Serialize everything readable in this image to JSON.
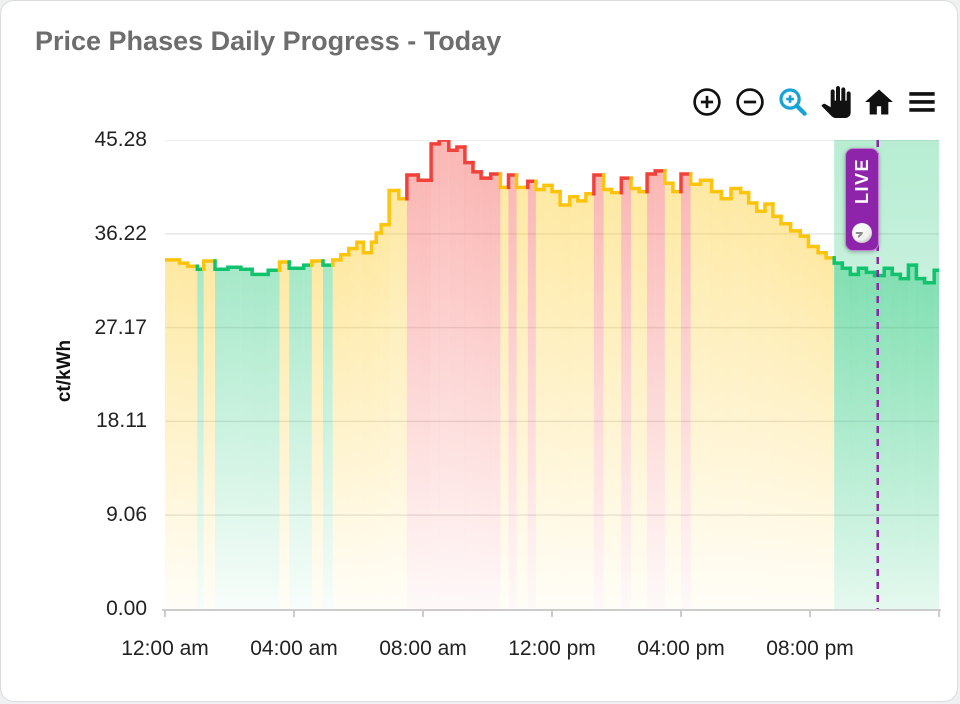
{
  "title": "Price Phases Daily Progress - Today",
  "toolbar": {
    "buttons": [
      {
        "name": "zoom-in",
        "icon": "circle-plus-icon",
        "color": "#111111"
      },
      {
        "name": "zoom-out",
        "icon": "circle-minus-icon",
        "color": "#111111"
      },
      {
        "name": "zoom-select",
        "icon": "magnifier-plus-icon",
        "color": "#17a2d8",
        "active": true
      },
      {
        "name": "pan",
        "icon": "hand-icon",
        "color": "#111111"
      },
      {
        "name": "reset-home",
        "icon": "home-icon",
        "color": "#111111"
      },
      {
        "name": "menu",
        "icon": "hamburger-icon",
        "color": "#111111"
      }
    ]
  },
  "live_badge": {
    "label": "LIVE",
    "color": "#8e24aa",
    "icon": "clock-icon"
  },
  "axes": {
    "y_title": "ct/kWh",
    "y_ticks": [
      {
        "label": "45.28",
        "value": 45.28
      },
      {
        "label": "36.22",
        "value": 36.22
      },
      {
        "label": "27.17",
        "value": 27.17
      },
      {
        "label": "18.11",
        "value": 18.11
      },
      {
        "label": "9.06",
        "value": 9.06
      },
      {
        "label": "0.00",
        "value": 0.0
      }
    ],
    "x_ticks": [
      {
        "label": "12:00 am",
        "hour": 0
      },
      {
        "label": "04:00 am",
        "hour": 4
      },
      {
        "label": "08:00 am",
        "hour": 8
      },
      {
        "label": "12:00 pm",
        "hour": 12
      },
      {
        "label": "04:00 pm",
        "hour": 16
      },
      {
        "label": "08:00 pm",
        "hour": 20
      }
    ]
  },
  "colors": {
    "green": "#12c36e",
    "yellow": "#fdc40d",
    "red": "#f2413a",
    "purple": "#8e24aa",
    "grid": "#e7e7e7",
    "axis": "#cccccc",
    "title_gray": "#6d6d6d"
  },
  "chart_data": {
    "type": "step-area",
    "title": "Price Phases Daily Progress - Today",
    "ylabel": "ct/kWh",
    "ylim": [
      0,
      45.28
    ],
    "x_range_hours": [
      0,
      24
    ],
    "grid": "horizontal",
    "legend": "none",
    "points_format": [
      "hour",
      "price_ct_per_kWh",
      "phase(g=green,y=yellow,r=red)"
    ],
    "points": [
      [
        0,
        33.7,
        "y"
      ],
      [
        0.45,
        33.4,
        "y"
      ],
      [
        0.7,
        33.1,
        "y"
      ],
      [
        1,
        32.8,
        "g"
      ],
      [
        1.2,
        33.6,
        "y"
      ],
      [
        1.55,
        32.8,
        "g"
      ],
      [
        1.95,
        33,
        "g"
      ],
      [
        2.35,
        32.8,
        "g"
      ],
      [
        2.7,
        32.3,
        "g"
      ],
      [
        3.2,
        32.7,
        "g"
      ],
      [
        3.55,
        33.5,
        "y"
      ],
      [
        3.85,
        32.9,
        "g"
      ],
      [
        4.3,
        33.2,
        "g"
      ],
      [
        4.55,
        33.6,
        "y"
      ],
      [
        4.9,
        33.2,
        "g"
      ],
      [
        5.2,
        33.7,
        "y"
      ],
      [
        5.45,
        34.2,
        "y"
      ],
      [
        5.7,
        34.8,
        "y"
      ],
      [
        5.95,
        35.4,
        "y"
      ],
      [
        6.15,
        34.4,
        "y"
      ],
      [
        6.4,
        35.4,
        "y"
      ],
      [
        6.55,
        36.3,
        "y"
      ],
      [
        6.7,
        37.1,
        "y"
      ],
      [
        6.95,
        40.4,
        "y"
      ],
      [
        7.25,
        39.6,
        "y"
      ],
      [
        7.5,
        41.9,
        "r"
      ],
      [
        7.85,
        41.4,
        "r"
      ],
      [
        8.25,
        44.9,
        "r"
      ],
      [
        8.5,
        45.28,
        "r"
      ],
      [
        8.8,
        44.3,
        "r"
      ],
      [
        9.05,
        44.6,
        "r"
      ],
      [
        9.3,
        43.1,
        "r"
      ],
      [
        9.55,
        42.2,
        "r"
      ],
      [
        9.8,
        41.6,
        "r"
      ],
      [
        10.1,
        42,
        "r"
      ],
      [
        10.4,
        40.7,
        "y"
      ],
      [
        10.65,
        41.9,
        "r"
      ],
      [
        10.9,
        40.7,
        "y"
      ],
      [
        11.25,
        41.3,
        "r"
      ],
      [
        11.5,
        40.5,
        "y"
      ],
      [
        11.75,
        40.9,
        "y"
      ],
      [
        12,
        40.3,
        "y"
      ],
      [
        12.25,
        39,
        "y"
      ],
      [
        12.55,
        39.8,
        "y"
      ],
      [
        12.8,
        39.4,
        "y"
      ],
      [
        13.05,
        40.1,
        "y"
      ],
      [
        13.3,
        41.9,
        "r"
      ],
      [
        13.6,
        40.5,
        "y"
      ],
      [
        13.85,
        40.2,
        "y"
      ],
      [
        14.15,
        41.6,
        "r"
      ],
      [
        14.45,
        40.6,
        "y"
      ],
      [
        14.7,
        40.3,
        "y"
      ],
      [
        14.95,
        42,
        "r"
      ],
      [
        15.2,
        42.3,
        "r"
      ],
      [
        15.5,
        41.1,
        "y"
      ],
      [
        15.75,
        40.3,
        "y"
      ],
      [
        16,
        42,
        "r"
      ],
      [
        16.3,
        41,
        "y"
      ],
      [
        16.6,
        41.4,
        "y"
      ],
      [
        16.95,
        40.3,
        "y"
      ],
      [
        17.25,
        39.6,
        "y"
      ],
      [
        17.55,
        40.6,
        "y"
      ],
      [
        17.85,
        40.2,
        "y"
      ],
      [
        18.1,
        39.2,
        "y"
      ],
      [
        18.35,
        38.4,
        "y"
      ],
      [
        18.6,
        39.1,
        "y"
      ],
      [
        18.85,
        37.9,
        "y"
      ],
      [
        19.1,
        37.2,
        "y"
      ],
      [
        19.4,
        36.5,
        "y"
      ],
      [
        19.7,
        36,
        "y"
      ],
      [
        19.95,
        35,
        "y"
      ],
      [
        20.25,
        34.4,
        "y"
      ],
      [
        20.5,
        33.9,
        "y"
      ],
      [
        20.75,
        33.4,
        "g"
      ],
      [
        21,
        32.9,
        "g"
      ],
      [
        21.25,
        32.3,
        "g"
      ],
      [
        21.5,
        32.9,
        "g"
      ],
      [
        21.75,
        32.5,
        "g"
      ],
      [
        22,
        32.2,
        "g"
      ],
      [
        22.3,
        32.9,
        "g"
      ],
      [
        22.55,
        32.3,
        "g"
      ],
      [
        22.8,
        31.9,
        "g"
      ],
      [
        23.05,
        33.2,
        "g"
      ],
      [
        23.3,
        31.9,
        "g"
      ],
      [
        23.55,
        31.5,
        "g"
      ],
      [
        23.85,
        32.7,
        "g"
      ],
      [
        24,
        32.7,
        "g"
      ]
    ],
    "live_marker_hour": 22.1,
    "green_band_start_hour": 20.75
  }
}
